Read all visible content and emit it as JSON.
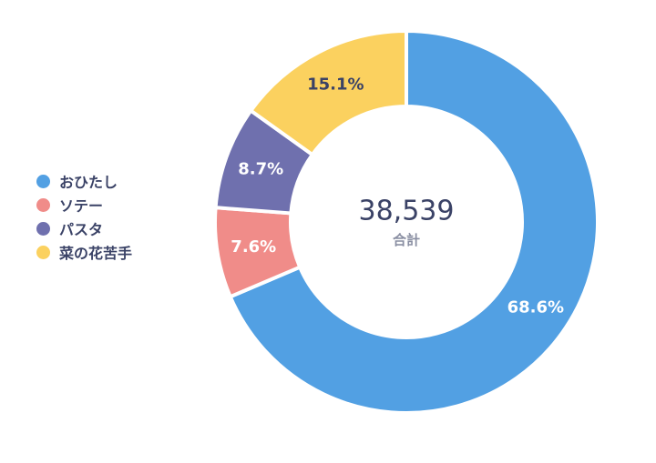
{
  "chart_data": {
    "type": "pie",
    "title": "",
    "legend_position": "left",
    "center": {
      "total": "38,539",
      "caption": "合計"
    },
    "series": [
      {
        "name": "おひたし",
        "percent": 68.6,
        "label": "68.6%",
        "color": "#52a0e3",
        "label_color": "#ffffff"
      },
      {
        "name": "ソテー",
        "percent": 7.6,
        "label": "7.6%",
        "color": "#f08c89",
        "label_color": "#ffffff"
      },
      {
        "name": "パスタ",
        "percent": 8.7,
        "label": "8.7%",
        "color": "#6f70ae",
        "label_color": "#ffffff"
      },
      {
        "name": "菜の花苦手",
        "percent": 15.1,
        "label": "15.1%",
        "color": "#fbd15f",
        "label_color": "#3a4266"
      }
    ]
  }
}
